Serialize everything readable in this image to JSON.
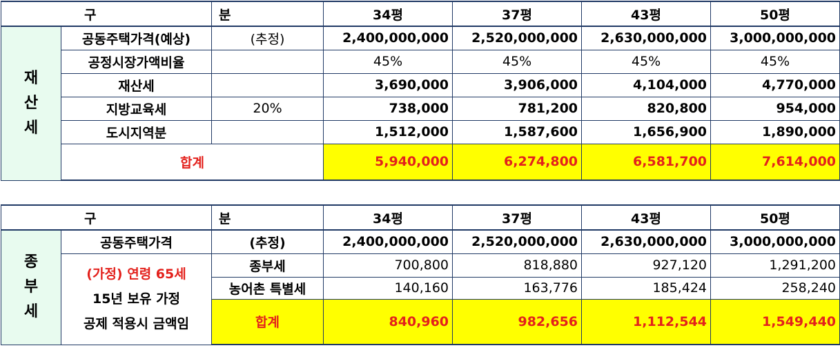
{
  "table1": {
    "header": [
      "구",
      "분",
      "34평",
      "37평",
      "43평",
      "50평"
    ],
    "group_label": [
      "재",
      "산",
      "세"
    ],
    "rows": [
      {
        "label": "공동주택가격(예상)",
        "note": "(추정)",
        "values": [
          "2,400,000,000",
          "2,520,000,000",
          "2,630,000,000",
          "3,000,000,000"
        ]
      },
      {
        "label": "공정시장가액비율",
        "note": "",
        "values": [
          "45%",
          "45%",
          "45%",
          "45%"
        ]
      },
      {
        "label": "재산세",
        "note": "",
        "values": [
          "3,690,000",
          "3,906,000",
          "4,104,000",
          "4,770,000"
        ]
      },
      {
        "label": "지방교육세",
        "note": "20%",
        "values": [
          "738,000",
          "781,200",
          "820,800",
          "954,000"
        ]
      },
      {
        "label": "도시지역분",
        "note": "",
        "values": [
          "1,512,000",
          "1,587,600",
          "1,656,900",
          "1,890,000"
        ]
      }
    ],
    "total_label": "합계",
    "totals": [
      "5,940,000",
      "6,274,800",
      "6,581,700",
      "7,614,000"
    ]
  },
  "table2": {
    "header": [
      "구",
      "분",
      "34평",
      "37평",
      "43평",
      "50평"
    ],
    "group_label": [
      "종",
      "부",
      "세"
    ],
    "price_row": {
      "label": "공동주택가격",
      "note": "(추정)",
      "values": [
        "2,400,000,000",
        "2,520,000,000",
        "2,630,000,000",
        "3,000,000,000"
      ]
    },
    "assumption_lines": [
      "(가정) 연령 65세",
      "15년 보유 가정",
      "공제 적용시 금액임"
    ],
    "rows": [
      {
        "label": "종부세",
        "values": [
          "700,800",
          "818,880",
          "927,120",
          "1,291,200"
        ]
      },
      {
        "label": "농어촌 특별세",
        "values": [
          "140,160",
          "163,776",
          "185,424",
          "258,240"
        ]
      }
    ],
    "total_label": "합계",
    "totals": [
      "840,960",
      "982,656",
      "1,112,544",
      "1,549,440"
    ]
  },
  "colors": {
    "border": "#1f3864",
    "highlight": "#ffff00",
    "group_bg": "#e8fbef",
    "accent_red": "#e3211c"
  }
}
